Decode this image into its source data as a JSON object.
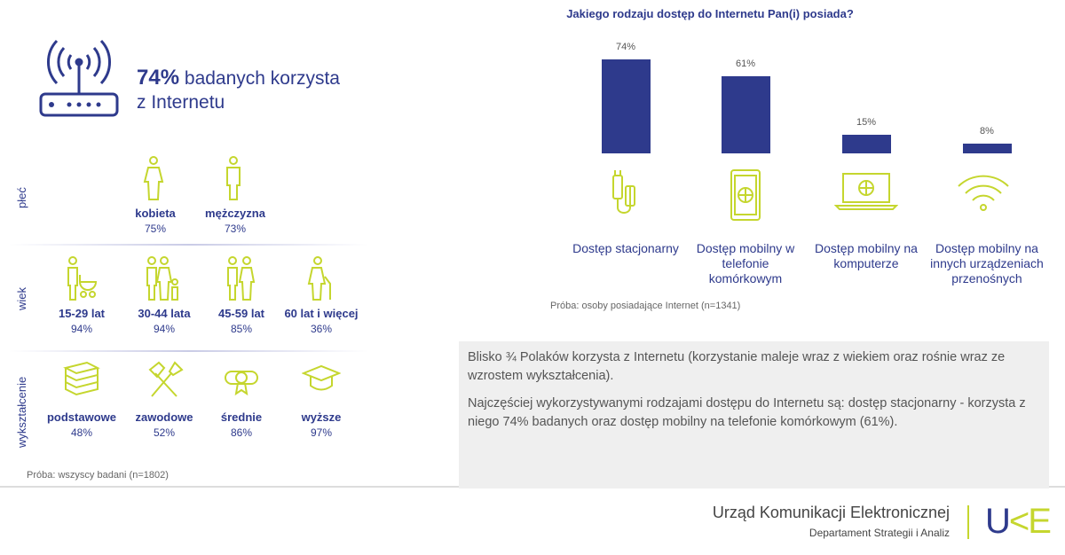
{
  "headline": {
    "pct": "74%",
    "text1": "badanych korzysta",
    "text2": "z Internetu"
  },
  "groups": [
    {
      "label": "płeć",
      "items": [
        {
          "label": "kobieta",
          "value": "75%",
          "icon": "woman-icon"
        },
        {
          "label": "mężczyzna",
          "value": "73%",
          "icon": "man-icon"
        }
      ]
    },
    {
      "label": "wiek",
      "items": [
        {
          "label": "15-29 lat",
          "value": "94%",
          "icon": "parent-stroller-icon"
        },
        {
          "label": "30-44 lata",
          "value": "94%",
          "icon": "family-icon"
        },
        {
          "label": "45-59 lat",
          "value": "85%",
          "icon": "couple-icon"
        },
        {
          "label": "60 lat i więcej",
          "value": "36%",
          "icon": "elderly-icon"
        }
      ]
    },
    {
      "label": "wykształcenie",
      "items": [
        {
          "label": "podstawowe",
          "value": "48%",
          "icon": "books-icon"
        },
        {
          "label": "zawodowe",
          "value": "52%",
          "icon": "hammers-icon"
        },
        {
          "label": "średnie",
          "value": "86%",
          "icon": "diploma-icon"
        },
        {
          "label": "wyższe",
          "value": "97%",
          "icon": "graduation-cap-icon"
        }
      ]
    }
  ],
  "sample_left": "Próba: wszyscy badani (n=1802)",
  "chart_data": {
    "type": "bar",
    "title": "Jakiego rodzaju dostęp do Internetu Pan(i) posiada?",
    "categories": [
      "Dostęp stacjonarny",
      "Dostęp mobilny w telefonie komórkowym",
      "Dostęp mobilny na komputerze",
      "Dostęp mobilny na innych urządzeniach przenośnych"
    ],
    "values": [
      74,
      61,
      15,
      8
    ],
    "data_labels": [
      "74%",
      "61%",
      "15%",
      "8%"
    ],
    "ylim": [
      0,
      100
    ],
    "grid": false,
    "color": "#2e3a8c"
  },
  "sample_right": "Próba: osoby posiadające Internet (n=1341)",
  "summary": [
    "Blisko ¾ Polaków korzysta z Internetu (korzystanie maleje wraz z wiekiem oraz rośnie wraz ze wzrostem wykształcenia).",
    "Najczęściej wykorzystywanymi rodzajami dostępu do Internetu są: dostęp stacjonarny - korzysta z niego 74% badanych oraz dostęp mobilny na telefonie komórkowym (61%)."
  ],
  "footer": {
    "org": "Urząd Komunikacji Elektronicznej",
    "dept": "Departament Strategii i Analiz",
    "logo": "UKE"
  },
  "colors": {
    "navy": "#2e3a8c",
    "lime": "#c5d62e"
  }
}
